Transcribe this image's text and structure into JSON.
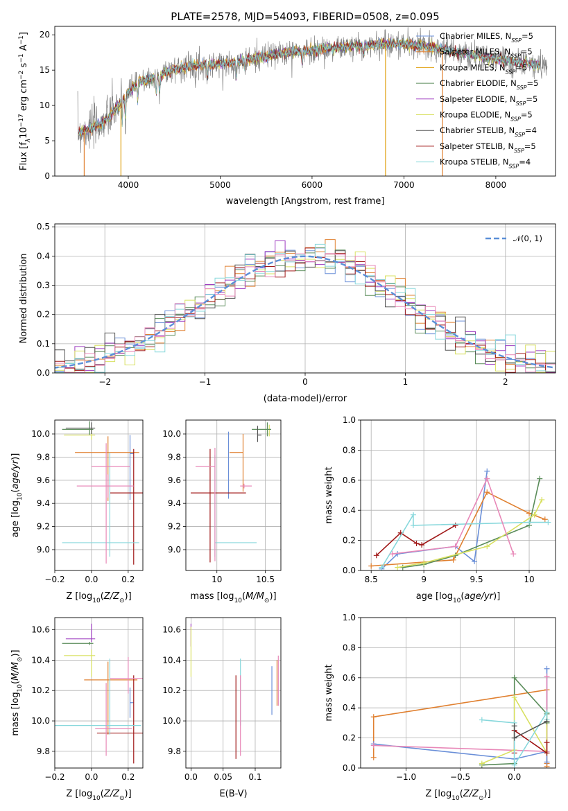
{
  "title": "PLATE=2578, MJD=54093, FIBERID=0508, z=0.095",
  "colors": [
    "#6a8fd8",
    "#e08030",
    "#5a8c5a",
    "#9d3cc0",
    "#d8e060",
    "#555555",
    "#a01818",
    "#88d8dc",
    "#e888b8"
  ],
  "chart_data": [
    {
      "id": "spectrum",
      "type": "line",
      "xlabel": "wavelength [Angstrom, rest frame]",
      "ylabel_parts": [
        "Flux [f",
        "λ",
        "10",
        "−17",
        " erg cm",
        "−2",
        " s",
        "−1",
        " A",
        "−1",
        "]"
      ],
      "xlim": [
        3200,
        8650
      ],
      "ylim": [
        0,
        21.2
      ],
      "xticks": [
        4000,
        5000,
        6000,
        7000,
        8000
      ],
      "yticks": [
        0,
        5,
        10,
        15,
        20
      ],
      "grid": false,
      "legend_placement": "top-right",
      "series": [
        {
          "label": "Chabrier MILES",
          "nssp": "5",
          "color": "#6a8fd8"
        },
        {
          "label": "Salpeter MILES",
          "nssp": "5",
          "color": "#e08030"
        },
        {
          "label": "Kroupa MILES",
          "nssp": "5",
          "color": "#e0a010"
        },
        {
          "label": "Chabrier ELODIE",
          "nssp": "5",
          "color": "#5a8c5a"
        },
        {
          "label": "Salpeter ELODIE",
          "nssp": "5",
          "color": "#9d3cc0"
        },
        {
          "label": "Kroupa ELODIE",
          "nssp": "5",
          "color": "#d8e060"
        },
        {
          "label": "Chabrier STELIB",
          "nssp": "4",
          "color": "#555555"
        },
        {
          "label": "Salpeter STELIB",
          "nssp": "5",
          "color": "#a01818"
        },
        {
          "label": "Kroupa STELIB",
          "nssp": "4",
          "color": "#88d8dc"
        }
      ],
      "nssp_prefix": "N",
      "nssp_sub": "SSP",
      "nssp_eq": "=",
      "continuum": [
        [
          3450,
          6.2
        ],
        [
          3600,
          6.8
        ],
        [
          3700,
          7.4
        ],
        [
          3800,
          8.5
        ],
        [
          3900,
          10.2
        ],
        [
          4000,
          11.8
        ],
        [
          4100,
          13.2
        ],
        [
          4300,
          14.0
        ],
        [
          4500,
          15.2
        ],
        [
          4700,
          15.6
        ],
        [
          5000,
          15.9
        ],
        [
          5200,
          16.2
        ],
        [
          5500,
          17.0
        ],
        [
          5800,
          17.6
        ],
        [
          6000,
          17.8
        ],
        [
          6300,
          18.2
        ],
        [
          6600,
          18.5
        ],
        [
          6800,
          18.7
        ],
        [
          7000,
          18.7
        ],
        [
          7300,
          18.3
        ],
        [
          7600,
          17.4
        ],
        [
          8000,
          16.6
        ],
        [
          8300,
          16.0
        ],
        [
          8500,
          15.6
        ]
      ],
      "absorption_lines": [
        [
          3934,
          3.2
        ],
        [
          3969,
          3.0
        ],
        [
          4102,
          2.4
        ],
        [
          4304,
          2.6
        ],
        [
          4340,
          2.2
        ],
        [
          4861,
          2.0
        ],
        [
          5175,
          2.4
        ],
        [
          5270,
          1.4
        ],
        [
          5893,
          1.8
        ],
        [
          6563,
          1.6
        ]
      ],
      "spikes": [
        [
          3520,
          0
        ],
        [
          3920,
          0
        ],
        [
          6800,
          0
        ],
        [
          7420,
          0
        ]
      ]
    },
    {
      "id": "residuals",
      "type": "histogram",
      "xlabel": "(data-model)/error",
      "ylabel": "Normed distribution",
      "xlim": [
        -2.5,
        2.5
      ],
      "ylim": [
        0,
        0.51
      ],
      "xticks": [
        -2,
        -1,
        0,
        1,
        2
      ],
      "yticks": [
        0.0,
        0.1,
        0.2,
        0.3,
        0.4,
        0.5
      ],
      "grid": true,
      "legend": "𝒩(0, 1)",
      "legend_placement": "top-right",
      "bin_width": 0.1
    },
    {
      "id": "age-vs-Z",
      "type": "errorbar",
      "xlabel": "Z [log10(Z/Z☉)]",
      "ylabel": "age [log10(age/yr)]",
      "xlim": [
        -0.2,
        0.28
      ],
      "ylim": [
        8.82,
        10.12
      ],
      "xticks": [
        -0.2,
        0.0,
        0.2
      ],
      "yticks": [
        9.0,
        9.2,
        9.4,
        9.6,
        9.8,
        10.0
      ],
      "grid": true,
      "points": [
        {
          "x": 0.21,
          "xerr": [
            0.0,
            0.02
          ],
          "y": 9.83,
          "yerr": [
            0.4,
            0.16
          ],
          "c": 0
        },
        {
          "x": 0.09,
          "xerr": [
            0.18,
            0.17
          ],
          "y": 9.84,
          "yerr": [
            0.42,
            0.14
          ],
          "c": 1
        },
        {
          "x": -0.01,
          "xerr": [
            0.15,
            0.02
          ],
          "y": 10.04,
          "yerr": [
            0.05,
            0.07
          ],
          "c": 2
        },
        {
          "x": 0.0,
          "xerr": [
            0.15,
            0.02
          ],
          "y": 9.99,
          "yerr": [
            0.04,
            0.06
          ],
          "c": 4
        },
        {
          "x": 0.0,
          "xerr": [
            0.14,
            0.02
          ],
          "y": 10.05,
          "yerr": [
            0.05,
            0.05
          ],
          "c": 5
        },
        {
          "x": 0.23,
          "xerr": [
            0.13,
            0.05
          ],
          "y": 9.49,
          "yerr": [
            0.62,
            0.38
          ],
          "c": 6
        },
        {
          "x": 0.1,
          "xerr": [
            0.26,
            0.16
          ],
          "y": 9.06,
          "yerr": [
            0.12,
            0.78
          ],
          "c": 7
        },
        {
          "x": 0.08,
          "xerr": [
            0.08,
            0.13
          ],
          "y": 9.72,
          "yerr": [
            0.84,
            0.2
          ],
          "c": 8
        },
        {
          "x": 0.09,
          "xerr": [
            0.17,
            0.14
          ],
          "y": 9.55,
          "yerr": [
            0.1,
            0.1
          ],
          "c": 8,
          "alt": "#e888b8"
        }
      ]
    },
    {
      "id": "age-vs-mass",
      "type": "errorbar",
      "xlabel": "mass [log10(M/M☉)]",
      "ylabel": "",
      "xlim": [
        9.68,
        10.66
      ],
      "ylim": [
        8.82,
        10.12
      ],
      "xticks": [
        10.0,
        10.5
      ],
      "yticks": [
        9.0,
        9.2,
        9.4,
        9.6,
        9.8,
        10.0
      ],
      "grid": true,
      "points": [
        {
          "x": 10.12,
          "xerr": [
            0.0,
            0.0
          ],
          "y": 9.82,
          "yerr": [
            0.38,
            0.2
          ],
          "c": 0
        },
        {
          "x": 10.27,
          "xerr": [
            0.14,
            0.0
          ],
          "y": 9.84,
          "yerr": [
            0.34,
            0.16
          ],
          "c": 1
        },
        {
          "x": 10.54,
          "xerr": [
            0.0,
            0.0
          ],
          "y": 10.04,
          "yerr": [
            0.06,
            0.04
          ],
          "c": 4
        },
        {
          "x": 10.52,
          "xerr": [
            0.16,
            0.04
          ],
          "y": 10.04,
          "yerr": [
            0.06,
            0.06
          ],
          "c": 2
        },
        {
          "x": 10.42,
          "xerr": [
            0.0,
            0.04
          ],
          "y": 9.99,
          "yerr": [
            0.06,
            0.08
          ],
          "c": 5
        },
        {
          "x": 9.93,
          "xerr": [
            0.2,
            0.37
          ],
          "y": 9.49,
          "yerr": [
            0.6,
            0.38
          ],
          "c": 6
        },
        {
          "x": 9.98,
          "xerr": [
            0.0,
            0.43
          ],
          "y": 9.06,
          "yerr": [
            0.12,
            0.76
          ],
          "c": 7
        },
        {
          "x": 9.98,
          "xerr": [
            0.2,
            0.0
          ],
          "y": 9.72,
          "yerr": [
            0.82,
            0.16
          ],
          "c": 8
        },
        {
          "x": 10.28,
          "xerr": [
            0.04,
            0.08
          ],
          "y": 9.55,
          "yerr": [
            0.02,
            0.02
          ],
          "c": 8,
          "alt": "#e888b8"
        }
      ]
    },
    {
      "id": "massweight-vs-age",
      "type": "line",
      "xlabel": "age [log10(age/yr)]",
      "ylabel": "mass weight",
      "xlim": [
        8.4,
        10.25
      ],
      "ylim": [
        0.0,
        1.0
      ],
      "xticks": [
        8.5,
        9.0,
        9.5,
        10.0
      ],
      "yticks": [
        0.0,
        0.2,
        0.4,
        0.6,
        0.8,
        1.0
      ],
      "grid": true,
      "series": [
        {
          "c": "#6a8fd8",
          "x": [
            8.6,
            8.75,
            9.3,
            9.48,
            9.6
          ],
          "y": [
            0.01,
            0.11,
            0.16,
            0.06,
            0.66
          ]
        },
        {
          "c": "#e08030",
          "x": [
            8.5,
            9.28,
            9.6,
            10.0,
            10.15
          ],
          "y": [
            0.03,
            0.07,
            0.52,
            0.38,
            0.34
          ]
        },
        {
          "c": "#5a8c5a",
          "x": [
            8.8,
            9.0,
            9.3,
            10.0,
            10.1
          ],
          "y": [
            0.02,
            0.04,
            0.1,
            0.3,
            0.61
          ]
        },
        {
          "c": "#d8e060",
          "x": [
            8.75,
            9.0,
            9.6,
            10.05,
            10.12
          ],
          "y": [
            0.02,
            0.05,
            0.16,
            0.37,
            0.47
          ]
        },
        {
          "c": "#a01818",
          "x": [
            8.55,
            8.78,
            8.93,
            8.98,
            9.3
          ],
          "y": [
            0.1,
            0.25,
            0.18,
            0.17,
            0.3
          ]
        },
        {
          "c": "#88d8dc",
          "x": [
            8.6,
            8.9,
            8.9,
            10.0,
            10.18
          ],
          "y": [
            0.02,
            0.37,
            0.3,
            0.32,
            0.32
          ]
        },
        {
          "c": "#e888b8",
          "x": [
            8.7,
            9.3,
            9.6,
            9.85
          ],
          "y": [
            0.11,
            0.16,
            0.61,
            0.11
          ]
        }
      ]
    },
    {
      "id": "mass-vs-Z",
      "type": "errorbar",
      "xlabel": "Z [log10(Z/Z☉)]",
      "ylabel": "mass [log10(M/M☉)]",
      "xlim": [
        -0.2,
        0.28
      ],
      "ylim": [
        9.69,
        10.68
      ],
      "xticks": [
        -0.2,
        0.0,
        0.2
      ],
      "yticks": [
        9.8,
        10.0,
        10.2,
        10.4,
        10.6
      ],
      "grid": true,
      "points": [
        {
          "x": 0.21,
          "xerr": [
            0.0,
            0.02
          ],
          "y": 10.12,
          "yerr": [
            0.1,
            0.1
          ],
          "c": 0
        },
        {
          "x": 0.09,
          "xerr": [
            0.13,
            0.16
          ],
          "y": 10.27,
          "yerr": [
            0.36,
            0.12
          ],
          "c": 1
        },
        {
          "x": -0.01,
          "xerr": [
            0.15,
            0.02
          ],
          "y": 10.51,
          "yerr": [
            0.01,
            0.01
          ],
          "c": 2
        },
        {
          "x": 0.0,
          "xerr": [
            0.14,
            0.02
          ],
          "y": 10.54,
          "yerr": [
            0.02,
            0.1
          ],
          "c": 3
        },
        {
          "x": 0.0,
          "xerr": [
            0.15,
            0.02
          ],
          "y": 10.43,
          "yerr": [
            0.14,
            0.04
          ],
          "c": 4
        },
        {
          "x": 0.23,
          "xerr": [
            0.2,
            0.05
          ],
          "y": 9.92,
          "yerr": [
            0.2,
            0.38
          ],
          "c": 6
        },
        {
          "x": 0.1,
          "xerr": [
            0.3,
            0.17
          ],
          "y": 9.97,
          "yerr": [
            0.06,
            0.44
          ],
          "c": 7
        },
        {
          "x": 0.08,
          "xerr": [
            0.06,
            0.14
          ],
          "y": 9.95,
          "yerr": [
            0.18,
            0.3
          ],
          "c": 8
        },
        {
          "x": 0.2,
          "xerr": [
            0.1,
            0.08
          ],
          "y": 10.28,
          "yerr": [
            0.1,
            0.14
          ],
          "c": 8,
          "alt": "#e888b8"
        }
      ]
    },
    {
      "id": "mass-vs-EBV",
      "type": "errorbar",
      "xlabel": "E(B-V)",
      "ylabel": "",
      "xlim": [
        -0.008,
        0.14
      ],
      "ylim": [
        9.69,
        10.68
      ],
      "xticks": [
        0.0,
        0.05,
        0.1
      ],
      "yticks": [
        9.8,
        10.0,
        10.2,
        10.4,
        10.6
      ],
      "grid": true,
      "points": [
        {
          "x": 0.126,
          "xerr": [
            0,
            0
          ],
          "y": 10.2,
          "yerr": [
            0.16,
            0.16
          ],
          "c": 0
        },
        {
          "x": 0.134,
          "xerr": [
            0,
            0
          ],
          "y": 10.25,
          "yerr": [
            0.15,
            0.15
          ],
          "c": 1
        },
        {
          "x": 0.0,
          "xerr": [
            0,
            0
          ],
          "y": 10.55,
          "yerr": [
            0.06,
            0.09
          ],
          "c": 3
        },
        {
          "x": 0.0,
          "xerr": [
            0,
            0
          ],
          "y": 10.42,
          "yerr": [
            0.13,
            0.2
          ],
          "c": 4
        },
        {
          "x": 0.07,
          "xerr": [
            0,
            0
          ],
          "y": 10.05,
          "yerr": [
            0.3,
            0.25
          ],
          "c": 6
        },
        {
          "x": 0.077,
          "xerr": [
            0,
            0
          ],
          "y": 10.2,
          "yerr": [
            0.23,
            0.21
          ],
          "c": 7
        },
        {
          "x": 0.077,
          "xerr": [
            0,
            0
          ],
          "y": 10.0,
          "yerr": [
            0.23,
            0.3
          ],
          "c": 8
        },
        {
          "x": 0.136,
          "xerr": [
            0,
            0
          ],
          "y": 10.3,
          "yerr": [
            0.2,
            0.13
          ],
          "c": 8,
          "alt": "#e888b8"
        }
      ]
    },
    {
      "id": "massweight-vs-Z",
      "type": "line",
      "xlabel": "Z [log10(Z/Z☉)]",
      "ylabel": "mass weight",
      "xlim": [
        -1.42,
        0.38
      ],
      "ylim": [
        0.0,
        1.0
      ],
      "xticks": [
        -1.0,
        -0.5,
        0.0
      ],
      "yticks": [
        0.0,
        0.2,
        0.4,
        0.6,
        0.8,
        1.0
      ],
      "grid": true,
      "series": [
        {
          "c": "#e08030",
          "x": [
            -1.3,
            -1.3,
            0.3,
            0.3,
            0.3
          ],
          "y": [
            0.07,
            0.34,
            0.52,
            0.03,
            0.01
          ]
        },
        {
          "c": "#6a8fd8",
          "x": [
            -1.3,
            0.0,
            0.3,
            0.3,
            0.3
          ],
          "y": [
            0.16,
            0.06,
            0.11,
            0.66,
            0.04
          ]
        },
        {
          "c": "#e888b8",
          "x": [
            -1.3,
            0.3,
            0.3
          ],
          "y": [
            0.15,
            0.11,
            0.61
          ]
        },
        {
          "c": "#5a8c5a",
          "x": [
            -0.3,
            0.0,
            0.0,
            0.3,
            0.3
          ],
          "y": [
            0.02,
            0.03,
            0.6,
            0.36,
            0.3
          ]
        },
        {
          "c": "#d8e060",
          "x": [
            -0.3,
            0.0,
            0.0,
            0.3,
            0.3
          ],
          "y": [
            0.03,
            0.12,
            0.47,
            0.1,
            0.37
          ]
        },
        {
          "c": "#a01818",
          "x": [
            0.0,
            0.0,
            0.3,
            0.3
          ],
          "y": [
            0.1,
            0.25,
            0.1,
            0.17
          ]
        },
        {
          "c": "#88d8dc",
          "x": [
            -0.3,
            0.0,
            0.0,
            0.3,
            0.3
          ],
          "y": [
            0.32,
            0.3,
            0.02,
            0.37,
            0.32
          ]
        },
        {
          "c": "#555555",
          "x": [
            0.0,
            0.0,
            0.3
          ],
          "y": [
            0.28,
            0.2,
            0.31
          ]
        }
      ]
    }
  ]
}
